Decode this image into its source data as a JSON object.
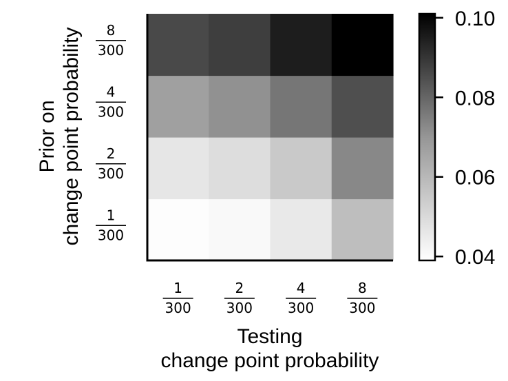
{
  "chart_data": {
    "type": "heatmap",
    "title": "",
    "xlabel": [
      "Testing",
      "change point probability"
    ],
    "ylabel": [
      "Prior on",
      "change point probability"
    ],
    "x_categories": [
      {
        "num": "1",
        "den": "300"
      },
      {
        "num": "2",
        "den": "300"
      },
      {
        "num": "4",
        "den": "300"
      },
      {
        "num": "8",
        "den": "300"
      }
    ],
    "y_categories": [
      {
        "num": "1",
        "den": "300"
      },
      {
        "num": "2",
        "den": "300"
      },
      {
        "num": "4",
        "den": "300"
      },
      {
        "num": "8",
        "den": "300"
      }
    ],
    "values": [
      [
        0.04,
        0.042,
        0.049,
        0.062
      ],
      [
        0.05,
        0.053,
        0.059,
        0.073
      ],
      [
        0.068,
        0.071,
        0.077,
        0.086
      ],
      [
        0.087,
        0.089,
        0.095,
        0.101
      ]
    ],
    "colorbar": {
      "range": [
        0.039,
        0.101
      ],
      "ticks": [
        0.04,
        0.06,
        0.08,
        0.1
      ],
      "tick_labels": [
        "0.04",
        "0.06",
        "0.08",
        "0.10"
      ],
      "colormap": "Greys",
      "low_color": "#ffffff",
      "high_color": "#000000"
    },
    "grid": false
  }
}
